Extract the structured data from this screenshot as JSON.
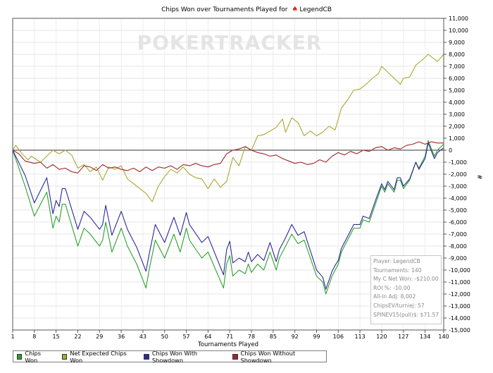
{
  "title": {
    "text": "Chips Won over Tournaments Played for",
    "player": "LegendCB"
  },
  "watermark": "POKERTRACKER",
  "xlabel": "Tournaments Played",
  "ylabel_glyph": "#",
  "info": {
    "player": "Player: LegendCB",
    "tournaments": "Tournaments: 140",
    "net_won": "My C Net Won: -$210.00",
    "roi": "ROI %: -10.00",
    "allin": "All-In Adj: 8,002",
    "chipsev": "ChipsEV/turniej: 57",
    "spinev": "SPINEV15(pull)$: $71.57"
  },
  "legend": [
    {
      "label": "Chips Won",
      "color": "#2ca02c"
    },
    {
      "label": "Net Expected Chips Won",
      "color": "#a8a832"
    },
    {
      "label": "Chips Won With Showdown",
      "color": "#2a2a9a"
    },
    {
      "label": "Chips Won Without Showdown",
      "color": "#a02828"
    }
  ],
  "chart_data": {
    "type": "line",
    "title": "Chips Won over Tournaments Played for LegendCB",
    "xlabel": "Tournaments Played",
    "ylabel": "#",
    "xlim": [
      1,
      140
    ],
    "ylim": [
      -15000,
      11000
    ],
    "xticks": [
      1,
      8,
      15,
      22,
      29,
      36,
      43,
      50,
      57,
      64,
      71,
      78,
      85,
      92,
      99,
      106,
      113,
      120,
      127,
      134,
      140
    ],
    "yticks": [
      -15000,
      -14000,
      -13000,
      -12000,
      -11000,
      -10000,
      -9000,
      -8000,
      -7000,
      -6000,
      -5000,
      -4000,
      -3000,
      -2000,
      -1000,
      0,
      1000,
      2000,
      3000,
      4000,
      5000,
      6000,
      7000,
      8000,
      9000,
      10000,
      11000
    ],
    "ytick_labels": [
      "-15,000",
      "-14,000",
      "-13,000",
      "-12,000",
      "-11,000",
      "-10,000",
      "-9,000",
      "-8,000",
      "-7,000",
      "-6,000",
      "-5,000",
      "-4,000",
      "-3,000",
      "-2,000",
      "-1,000",
      "0",
      "1,000",
      "2,000",
      "3,000",
      "4,000",
      "5,000",
      "6,000",
      "7,000",
      "8,000",
      "9,000",
      "10,000",
      "11,000"
    ],
    "grid": true,
    "series": [
      {
        "name": "Chips Won",
        "color": "#2ca02c",
        "x": [
          1,
          5,
          8,
          12,
          14,
          15,
          16,
          17,
          18,
          22,
          24,
          26,
          29,
          30,
          31,
          33,
          36,
          38,
          41,
          44,
          45,
          47,
          50,
          53,
          55,
          57,
          58,
          62,
          64,
          69,
          70,
          71,
          72,
          74,
          76,
          77,
          78,
          80,
          82,
          84,
          86,
          87,
          88,
          89,
          91,
          93,
          95,
          97,
          99,
          101,
          102,
          104,
          105,
          106,
          107,
          108,
          110,
          111,
          113,
          114,
          116,
          118,
          120,
          121,
          122,
          124,
          125,
          126,
          127,
          129,
          131,
          132,
          134,
          135,
          137,
          138,
          140
        ],
        "y": [
          0,
          -3000,
          -5500,
          -3500,
          -6500,
          -5500,
          -6000,
          -4500,
          -4500,
          -8000,
          -6500,
          -7000,
          -8000,
          -7500,
          -6000,
          -8500,
          -6500,
          -8000,
          -9500,
          -11500,
          -10000,
          -7500,
          -9000,
          -7000,
          -8500,
          -6500,
          -7500,
          -9000,
          -8500,
          -11500,
          -9500,
          -8800,
          -10500,
          -10000,
          -10300,
          -9500,
          -10200,
          -9500,
          -10000,
          -8500,
          -10000,
          -9000,
          -8500,
          -8000,
          -7000,
          -7800,
          -7500,
          -9000,
          -10500,
          -11000,
          -12000,
          -10500,
          -10000,
          -9500,
          -8500,
          -8000,
          -7000,
          -6500,
          -6500,
          -5800,
          -6000,
          -4500,
          -3000,
          -3500,
          -2800,
          -3500,
          -2500,
          -2500,
          -3200,
          -2500,
          -1000,
          -1500,
          -500,
          800,
          -500,
          0,
          500
        ]
      },
      {
        "name": "Net Expected Chips Won",
        "color": "#a8a832",
        "x": [
          1,
          2,
          4,
          6,
          7,
          10,
          12,
          14,
          16,
          18,
          20,
          22,
          24,
          26,
          28,
          30,
          32,
          34,
          36,
          38,
          40,
          42,
          44,
          46,
          48,
          50,
          52,
          54,
          56,
          58,
          60,
          62,
          64,
          66,
          68,
          70,
          72,
          74,
          76,
          78,
          80,
          82,
          84,
          86,
          88,
          89,
          91,
          93,
          95,
          97,
          99,
          101,
          103,
          105,
          107,
          109,
          111,
          113,
          115,
          117,
          119,
          120,
          122,
          124,
          126,
          127,
          129,
          131,
          133,
          135,
          137,
          138,
          140
        ],
        "y": [
          0,
          400,
          -300,
          -800,
          -500,
          -1000,
          -500,
          0,
          -300,
          0,
          -400,
          -1500,
          -1200,
          -1800,
          -1400,
          -2500,
          -1400,
          -1600,
          -1300,
          -2400,
          -2800,
          -3200,
          -3600,
          -4300,
          -3000,
          -2200,
          -1600,
          -1900,
          -1400,
          -2000,
          -2300,
          -2400,
          -3200,
          -2400,
          -3100,
          -2600,
          -600,
          -1300,
          300,
          0,
          1200,
          1300,
          1600,
          1900,
          2600,
          1500,
          2700,
          2300,
          1200,
          1600,
          1200,
          1500,
          2000,
          1700,
          3500,
          4200,
          5000,
          5100,
          5500,
          6000,
          6400,
          7000,
          6500,
          6000,
          5500,
          6000,
          6100,
          7100,
          7500,
          8000,
          7600,
          7400,
          8000
        ]
      },
      {
        "name": "Chips Won With Showdown",
        "color": "#2a2a9a",
        "x": [
          1,
          5,
          8,
          12,
          14,
          15,
          16,
          17,
          18,
          22,
          24,
          26,
          29,
          30,
          31,
          33,
          36,
          38,
          41,
          44,
          45,
          47,
          50,
          53,
          55,
          57,
          58,
          62,
          64,
          69,
          70,
          71,
          72,
          74,
          76,
          77,
          78,
          80,
          82,
          84,
          86,
          87,
          88,
          89,
          91,
          93,
          95,
          97,
          99,
          101,
          102,
          104,
          105,
          106,
          107,
          108,
          110,
          111,
          113,
          114,
          116,
          118,
          120,
          121,
          122,
          124,
          125,
          126,
          127,
          129,
          131,
          132,
          134,
          135,
          137,
          138,
          140
        ],
        "y": [
          0,
          -2100,
          -4400,
          -2300,
          -5300,
          -4200,
          -4700,
          -3200,
          -3200,
          -6600,
          -5100,
          -5600,
          -6600,
          -6200,
          -4600,
          -7100,
          -5100,
          -6600,
          -8100,
          -10100,
          -8700,
          -6200,
          -7700,
          -5600,
          -7100,
          -5200,
          -6200,
          -7700,
          -7200,
          -10400,
          -8300,
          -7600,
          -9400,
          -9000,
          -9300,
          -8500,
          -9300,
          -8700,
          -9200,
          -7700,
          -9300,
          -8300,
          -7800,
          -7300,
          -6200,
          -7100,
          -6800,
          -8400,
          -10000,
          -10600,
          -11600,
          -10100,
          -9600,
          -9200,
          -8200,
          -7700,
          -6700,
          -6200,
          -6200,
          -5500,
          -5700,
          -4200,
          -2800,
          -3300,
          -2600,
          -3300,
          -2300,
          -2300,
          -3000,
          -2400,
          -1000,
          -1600,
          -700,
          600,
          -700,
          -200,
          200
        ]
      },
      {
        "name": "Chips Won Without Showdown",
        "color": "#a02828",
        "x": [
          1,
          3,
          5,
          8,
          10,
          12,
          14,
          16,
          18,
          20,
          22,
          24,
          26,
          28,
          30,
          32,
          34,
          36,
          38,
          40,
          42,
          44,
          46,
          48,
          50,
          52,
          54,
          56,
          58,
          60,
          62,
          64,
          66,
          68,
          70,
          72,
          74,
          76,
          78,
          80,
          82,
          84,
          86,
          88,
          90,
          92,
          94,
          96,
          98,
          100,
          102,
          104,
          106,
          108,
          110,
          112,
          114,
          116,
          118,
          120,
          122,
          124,
          126,
          128,
          130,
          132,
          134,
          136,
          138,
          140
        ],
        "y": [
          0,
          -300,
          -900,
          -1100,
          -1000,
          -1500,
          -1200,
          -1600,
          -1500,
          -1800,
          -1900,
          -1300,
          -1400,
          -1700,
          -1200,
          -1500,
          -1400,
          -1600,
          -1700,
          -1500,
          -1800,
          -1400,
          -1700,
          -1400,
          -1500,
          -1300,
          -1600,
          -1200,
          -1300,
          -1100,
          -1300,
          -1400,
          -1200,
          -1100,
          -300,
          0,
          100,
          300,
          0,
          -200,
          -300,
          -500,
          -400,
          -700,
          -900,
          -1100,
          -1000,
          -1200,
          -1100,
          -800,
          -1000,
          -500,
          -200,
          -400,
          -100,
          -300,
          0,
          -100,
          200,
          300,
          0,
          200,
          100,
          400,
          500,
          700,
          500,
          700,
          600,
          600
        ]
      }
    ]
  }
}
